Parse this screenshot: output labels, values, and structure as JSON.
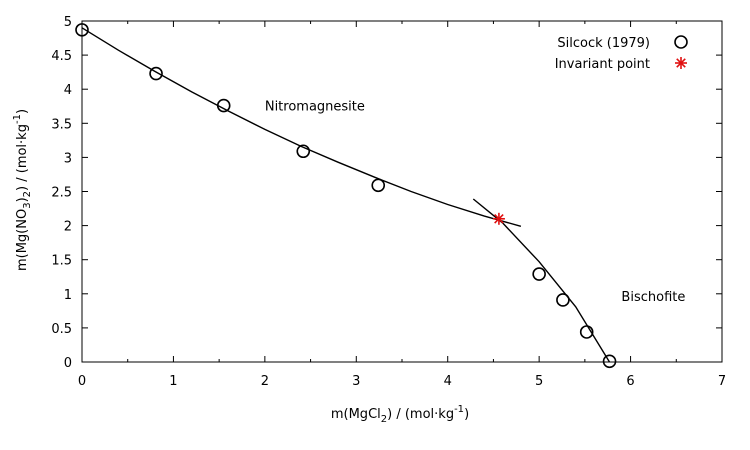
{
  "chart_data": {
    "type": "scatter",
    "xlim": [
      0,
      7
    ],
    "ylim": [
      0,
      5
    ],
    "xticks": [
      0,
      1,
      2,
      3,
      4,
      5,
      6,
      7
    ],
    "yticks": [
      0,
      0.5,
      1,
      1.5,
      2,
      2.5,
      3,
      3.5,
      4,
      4.5,
      5
    ],
    "xlabel": {
      "pre": "m(MgCl",
      "sub": "2",
      "mid": ") / (mol·kg",
      "sup": "-1",
      "post": ")"
    },
    "ylabel": {
      "pre": "m(Mg(NO",
      "sub1": "3",
      "mid": ")",
      "sub2": "2",
      "post1": ") / (mol·kg",
      "sup": "-1",
      "post2": ")"
    },
    "grid": false,
    "legend_position": "top-right",
    "series": [
      {
        "name": "Silcock (1979)",
        "marker": "open-circle",
        "color": "#000000",
        "x": [
          0,
          0.81,
          1.55,
          2.42,
          3.24,
          5.0,
          5.26,
          5.52,
          5.77
        ],
        "y": [
          4.87,
          4.23,
          3.76,
          3.09,
          2.59,
          1.29,
          0.91,
          0.44,
          0.01
        ]
      },
      {
        "name": "Invariant point",
        "marker": "asterisk",
        "color": "#e01010",
        "x": [
          4.56
        ],
        "y": [
          2.1
        ]
      }
    ],
    "fit_curves": [
      {
        "x": [
          0,
          0.4,
          0.8,
          1.2,
          1.6,
          2.0,
          2.4,
          2.8,
          3.2,
          3.6,
          4.0,
          4.4,
          4.8
        ],
        "y": [
          4.9,
          4.57,
          4.26,
          3.96,
          3.68,
          3.41,
          3.16,
          2.93,
          2.71,
          2.5,
          2.31,
          2.14,
          1.99
        ]
      },
      {
        "x": [
          4.28,
          4.6,
          5.0,
          5.4,
          5.77
        ],
        "y": [
          2.39,
          2.04,
          1.47,
          0.81,
          0.0
        ]
      }
    ],
    "annotations": [
      {
        "text": "Nitromagnesite",
        "x": 2.0,
        "y": 3.76
      },
      {
        "text": "Bischofite",
        "x": 5.9,
        "y": 0.97
      }
    ]
  }
}
